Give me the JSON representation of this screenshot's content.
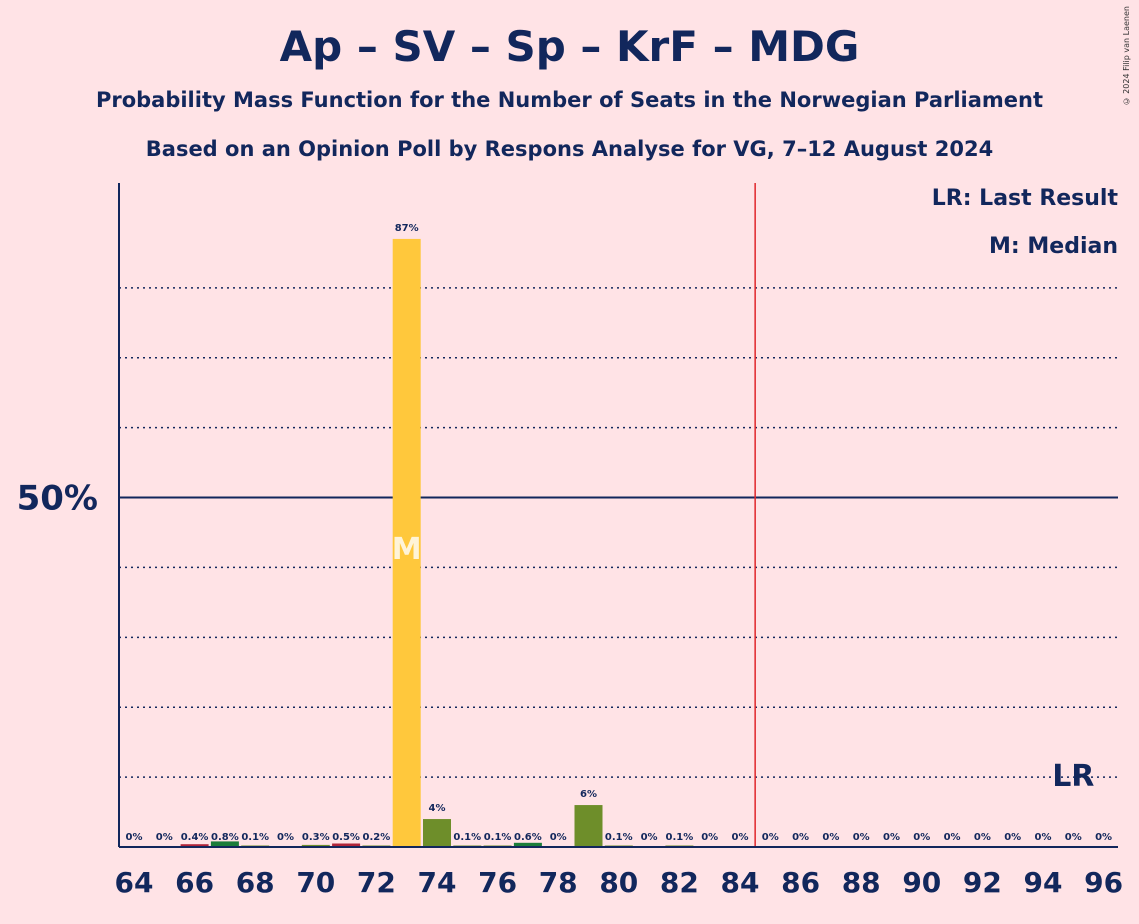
{
  "title": "Ap – SV – Sp – KrF – MDG",
  "subtitle": "Probability Mass Function for the Number of Seats in the Norwegian Parliament",
  "subtitle2": "Based on an Opinion Poll by Respons Analyse for VG, 7–12 August 2024",
  "copyright": "© 2024 Filip van Laenen",
  "legend": {
    "last_result": "LR: Last Result",
    "median": "M: Median"
  },
  "colors": {
    "background": "#FFE3E6",
    "text": "#12275C",
    "bar_main": "#FFC83C",
    "bar_secondary": "#6E8E2A",
    "bar_green": "#1B7C3A",
    "bar_red": "#B0243A",
    "majority_line": "#E0262B"
  },
  "chart_data": {
    "type": "bar",
    "x": [
      64,
      65,
      66,
      67,
      68,
      69,
      70,
      71,
      72,
      73,
      74,
      75,
      76,
      77,
      78,
      79,
      80,
      81,
      82,
      83,
      84,
      85,
      86,
      87,
      88,
      89,
      90,
      91,
      92,
      93,
      94,
      95,
      96
    ],
    "values": [
      0,
      0,
      0.4,
      0.8,
      0.1,
      0,
      0.3,
      0.5,
      0.2,
      87,
      4,
      0.1,
      0.1,
      0.6,
      0,
      6,
      0.1,
      0,
      0.1,
      0,
      0,
      0,
      0,
      0,
      0,
      0,
      0,
      0,
      0,
      0,
      0,
      0,
      0
    ],
    "labels": [
      "0%",
      "0%",
      "0.4%",
      "0.8%",
      "0.1%",
      "0%",
      "0.3%",
      "0.5%",
      "0.2%",
      "87%",
      "4%",
      "0.1%",
      "0.1%",
      "0.6%",
      "0%",
      "6%",
      "0.1%",
      "0%",
      "0.1%",
      "0%",
      "0%",
      "0%",
      "0%",
      "0%",
      "0%",
      "0%",
      "0%",
      "0%",
      "0%",
      "0%",
      "0%",
      "0%",
      "0%"
    ],
    "bar_colors": [
      "#6E8E2A",
      "#6E8E2A",
      "#B0243A",
      "#1B7C3A",
      "#6E8E2A",
      "#6E8E2A",
      "#6E8E2A",
      "#B0243A",
      "#6E8E2A",
      "#FFC83C",
      "#6E8E2A",
      "#6E8E2A",
      "#6E8E2A",
      "#1B7C3A",
      "#6E8E2A",
      "#6E8E2A",
      "#6E8E2A",
      "#6E8E2A",
      "#6E8E2A",
      "#6E8E2A",
      "#6E8E2A",
      "#6E8E2A",
      "#6E8E2A",
      "#6E8E2A",
      "#6E8E2A",
      "#6E8E2A",
      "#6E8E2A",
      "#6E8E2A",
      "#6E8E2A",
      "#6E8E2A",
      "#6E8E2A",
      "#6E8E2A",
      "#6E8E2A"
    ],
    "x_tick_labels": [
      "64",
      "66",
      "68",
      "70",
      "72",
      "74",
      "76",
      "78",
      "80",
      "82",
      "84",
      "86",
      "88",
      "90",
      "92",
      "94",
      "96"
    ],
    "x_tick_values": [
      64,
      66,
      68,
      70,
      72,
      74,
      76,
      78,
      80,
      82,
      84,
      86,
      88,
      90,
      92,
      94,
      96
    ],
    "y_tick_label": "50%",
    "y_tick_value": 50,
    "ylim": [
      0,
      95
    ],
    "y_gridlines": [
      10,
      20,
      30,
      40,
      60,
      70,
      80
    ],
    "median": 73,
    "median_label": "M",
    "majority_threshold": 84.5,
    "last_result": 95,
    "last_result_label": "LR",
    "grid": true,
    "legend_position": "top-right"
  }
}
